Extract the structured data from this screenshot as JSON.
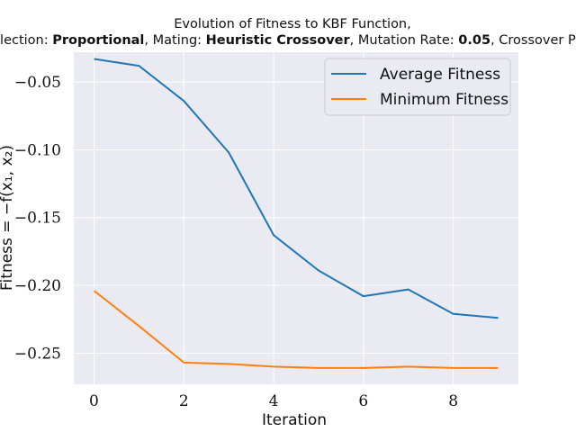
{
  "chart_data": {
    "type": "line",
    "title_line1": "Evolution of Fitness to KBF Function,",
    "title_line2_parts": [
      {
        "text": "Selection: ",
        "bold": false
      },
      {
        "text": "Proportional",
        "bold": true
      },
      {
        "text": ", Mating: ",
        "bold": false
      },
      {
        "text": "Heuristic Crossover",
        "bold": true
      },
      {
        "text": ", Mutation Rate: ",
        "bold": false
      },
      {
        "text": "0.05",
        "bold": true
      },
      {
        "text": ", Crossover Prob: ",
        "bold": false
      }
    ],
    "xlabel": "Iteration",
    "ylabel": "Fitness = −f(x₁, x₂)",
    "x": [
      0,
      1,
      2,
      3,
      4,
      5,
      6,
      7,
      8,
      9
    ],
    "xlim": [
      -0.45,
      9.45
    ],
    "ylim": [
      -0.273,
      -0.028
    ],
    "xticks": [
      0,
      2,
      4,
      6,
      8
    ],
    "xtick_labels": [
      "0",
      "2",
      "4",
      "6",
      "8"
    ],
    "yticks": [
      -0.05,
      -0.1,
      -0.15,
      -0.2,
      -0.25
    ],
    "ytick_labels": [
      "−0.05",
      "−0.10",
      "−0.15",
      "−0.20",
      "−0.25"
    ],
    "grid": true,
    "legend_position": "top-right",
    "series": [
      {
        "name": "Average Fitness",
        "color": "#1f77b4",
        "values": [
          -0.033,
          -0.038,
          -0.064,
          -0.102,
          -0.163,
          -0.189,
          -0.208,
          -0.203,
          -0.221,
          -0.224
        ]
      },
      {
        "name": "Minimum Fitness",
        "color": "#ff7f0e",
        "values": [
          -0.204,
          -0.23,
          -0.257,
          -0.258,
          -0.26,
          -0.261,
          -0.261,
          -0.26,
          -0.261,
          -0.261
        ]
      }
    ]
  }
}
